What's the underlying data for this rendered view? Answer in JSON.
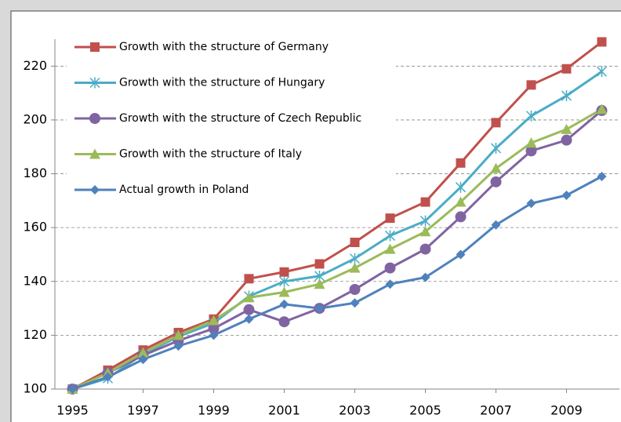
{
  "chart_data": {
    "type": "line",
    "x": [
      1995,
      1996,
      1997,
      1998,
      1999,
      2000,
      2001,
      2002,
      2003,
      2004,
      2005,
      2006,
      2007,
      2008,
      2009,
      2010
    ],
    "series": [
      {
        "name": "Growth with the structure of Germany",
        "color": "#c0504d",
        "marker": "square",
        "values": [
          100,
          107,
          114.5,
          121,
          126,
          141,
          143.5,
          146.5,
          154.5,
          163.5,
          169.5,
          184,
          199,
          213,
          219,
          229
        ]
      },
      {
        "name": "Growth with the structure of Hungary",
        "color": "#4bacc6",
        "marker": "star",
        "values": [
          100,
          104,
          113,
          119.5,
          124.5,
          134.5,
          140,
          142,
          148.5,
          157,
          162.5,
          175,
          189.5,
          201.5,
          209,
          218
        ]
      },
      {
        "name": "Growth with the structure of Czech Republic",
        "color": "#8064a2",
        "marker": "circle",
        "values": [
          100,
          106,
          112.5,
          118,
          122.5,
          129.5,
          125,
          130,
          137,
          145,
          152,
          164,
          177,
          188.5,
          192.5,
          203.5
        ]
      },
      {
        "name": "Growth with the structure of Italy",
        "color": "#9bbb59",
        "marker": "triangle",
        "values": [
          100,
          106,
          113.5,
          120,
          125.5,
          134,
          136,
          139,
          145,
          152,
          158.5,
          169.5,
          182,
          191.5,
          196.5,
          204
        ]
      },
      {
        "name": "Actual growth in Poland",
        "color": "#4f81bd",
        "marker": "diamond",
        "values": [
          100,
          104.5,
          111,
          116,
          120,
          126,
          131.5,
          130,
          132,
          139,
          141.5,
          150,
          161,
          169,
          172,
          179
        ]
      }
    ],
    "xlim": [
      1994.5,
      2010.5
    ],
    "xticks": [
      1995,
      1997,
      1999,
      2001,
      2003,
      2005,
      2007,
      2009
    ],
    "ylim": [
      100,
      230
    ],
    "yticks": [
      100,
      120,
      140,
      160,
      180,
      200,
      220
    ],
    "grid": true,
    "legend": "top-left"
  }
}
